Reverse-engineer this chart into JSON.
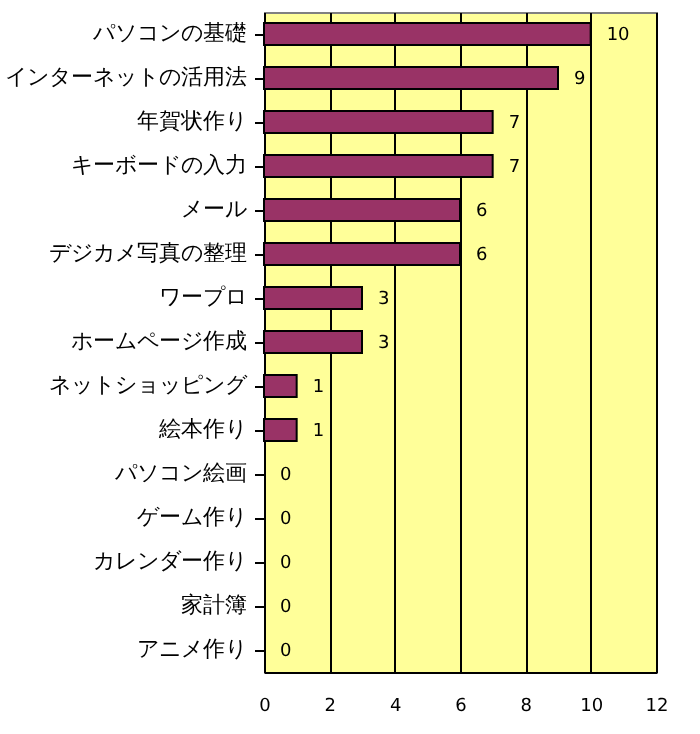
{
  "chart_data": {
    "type": "bar",
    "orientation": "horizontal",
    "categories": [
      "パソコンの基礎",
      "インターネットの活用法",
      "年賀状作り",
      "キーボードの入力",
      "メール",
      "デジカメ写真の整理",
      "ワープロ",
      "ホームページ作成",
      "ネットショッピング",
      "絵本作り",
      "パソコン絵画",
      "ゲーム作り",
      "カレンダー作り",
      "家計簿",
      "アニメ作り"
    ],
    "values": [
      10,
      9,
      7,
      7,
      6,
      6,
      3,
      3,
      1,
      1,
      0,
      0,
      0,
      0,
      0
    ],
    "color": "#993366",
    "xlim": [
      0,
      12
    ],
    "xticks": [
      0,
      2,
      4,
      6,
      8,
      10,
      12
    ],
    "grid": "x",
    "data_labels": true
  }
}
